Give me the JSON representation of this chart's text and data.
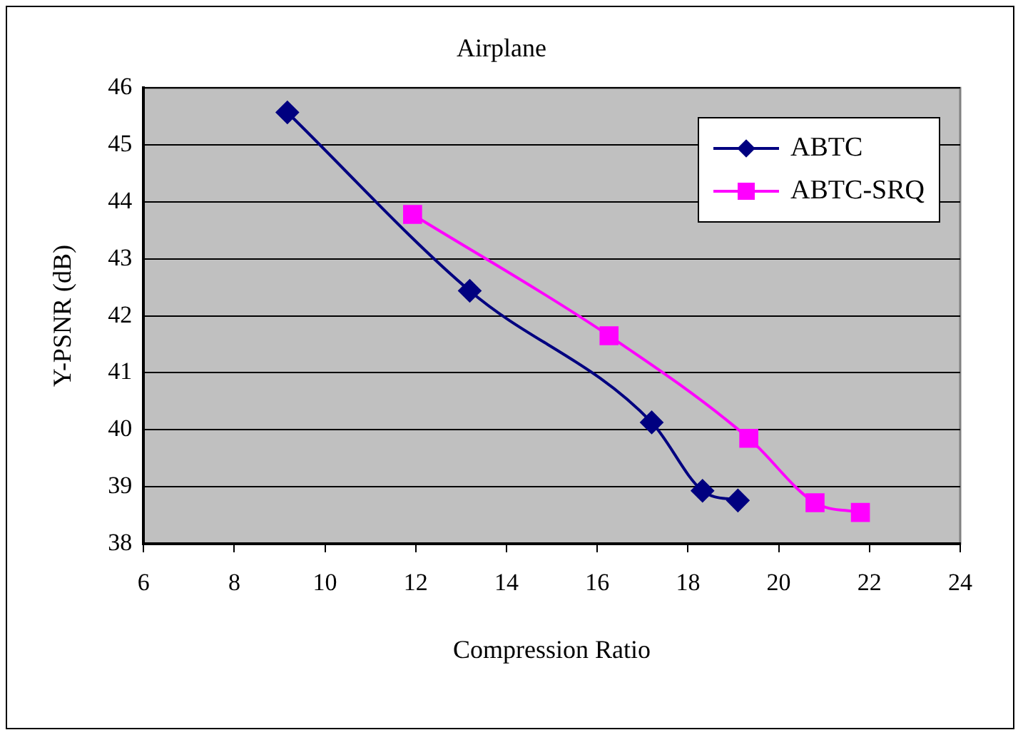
{
  "chart_data": {
    "type": "line",
    "title": "Airplane",
    "xlabel": "Compression Ratio",
    "ylabel": "Y-PSNR (dB)",
    "xlim": [
      6,
      24
    ],
    "xticks": [
      6,
      8,
      10,
      12,
      14,
      16,
      18,
      20,
      22,
      24
    ],
    "ylim": [
      38,
      46
    ],
    "yticks": [
      38,
      39,
      40,
      41,
      42,
      43,
      44,
      45,
      46
    ],
    "grid": "y",
    "legend": "top right",
    "series": [
      {
        "name": "ABTC",
        "color": "#000080",
        "marker": "diamond",
        "x": [
          9.17,
          13.19,
          17.2,
          18.32,
          19.1
        ],
        "values": [
          45.57,
          42.44,
          40.13,
          38.93,
          38.76
        ]
      },
      {
        "name": "ABTC-SRQ",
        "color": "#ff00ff",
        "marker": "square",
        "x": [
          11.93,
          16.26,
          19.34,
          20.8,
          21.8
        ],
        "values": [
          43.78,
          41.65,
          39.85,
          38.72,
          38.55
        ]
      }
    ]
  }
}
